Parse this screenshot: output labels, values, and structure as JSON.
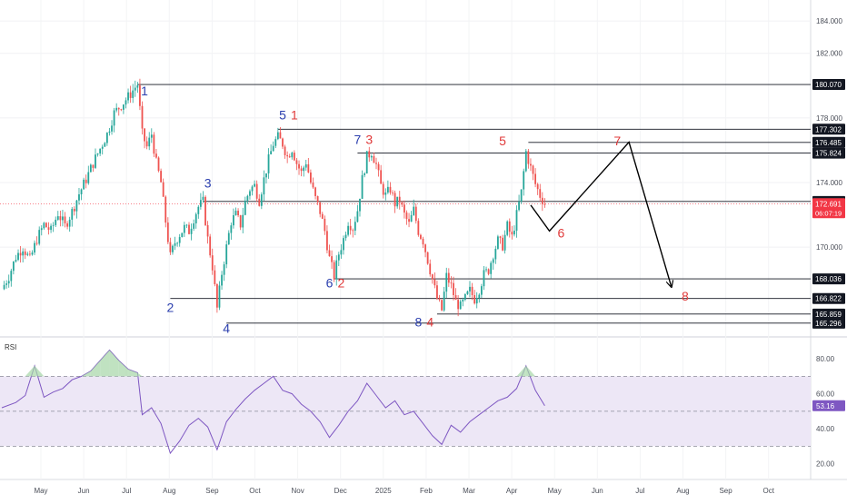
{
  "chart_data": [
    {
      "type": "candlestick",
      "title": "",
      "price_scale": {
        "ticks": [
          {
            "value": 184,
            "label": "184.000"
          },
          {
            "value": 182,
            "label": "182.000"
          },
          {
            "value": 178,
            "label": "178.000"
          },
          {
            "value": 174,
            "label": "174.000"
          },
          {
            "value": 170,
            "label": "170.000"
          }
        ],
        "ylim": [
          164.5,
          185.3
        ]
      },
      "time_axis": {
        "labels": [
          "May",
          "Jun",
          "Jul",
          "Aug",
          "Sep",
          "Oct",
          "Nov",
          "Dec",
          "2025",
          "Feb",
          "Mar",
          "Apr",
          "May",
          "Jun",
          "Jul",
          "Aug",
          "Sep",
          "Oct"
        ]
      },
      "price_series": [
        {
          "t": 0,
          "p": 167.4
        },
        {
          "t": 3,
          "p": 168.2
        },
        {
          "t": 6,
          "p": 169.4
        },
        {
          "t": 9,
          "p": 170.0
        },
        {
          "t": 12,
          "p": 169.2
        },
        {
          "t": 15,
          "p": 170.5
        },
        {
          "t": 18,
          "p": 171.4
        },
        {
          "t": 21,
          "p": 171.0
        },
        {
          "t": 24,
          "p": 172.1
        },
        {
          "t": 27,
          "p": 171.3
        },
        {
          "t": 30,
          "p": 172.2
        },
        {
          "t": 33,
          "p": 173.3
        },
        {
          "t": 36,
          "p": 174.2
        },
        {
          "t": 39,
          "p": 175.2
        },
        {
          "t": 42,
          "p": 176.1
        },
        {
          "t": 45,
          "p": 177.0
        },
        {
          "t": 48,
          "p": 178.3
        },
        {
          "t": 51,
          "p": 178.8
        },
        {
          "t": 54,
          "p": 179.3
        },
        {
          "t": 57,
          "p": 179.9
        },
        {
          "t": 58,
          "p": 180.07
        },
        {
          "t": 60,
          "p": 177.0
        },
        {
          "t": 62,
          "p": 176.2
        },
        {
          "t": 64,
          "p": 177.0
        },
        {
          "t": 66,
          "p": 175.2
        },
        {
          "t": 68,
          "p": 174.0
        },
        {
          "t": 70,
          "p": 171.6
        },
        {
          "t": 72,
          "p": 169.4
        },
        {
          "t": 74,
          "p": 170.3
        },
        {
          "t": 76,
          "p": 170.8
        },
        {
          "t": 78,
          "p": 171.2
        },
        {
          "t": 80,
          "p": 171.0
        },
        {
          "t": 82,
          "p": 171.8
        },
        {
          "t": 84,
          "p": 172.5
        },
        {
          "t": 86,
          "p": 172.8
        },
        {
          "t": 88,
          "p": 170.5
        },
        {
          "t": 90,
          "p": 168.8
        },
        {
          "t": 92,
          "p": 166.2
        },
        {
          "t": 94,
          "p": 168.4
        },
        {
          "t": 96,
          "p": 170.0
        },
        {
          "t": 98,
          "p": 171.6
        },
        {
          "t": 100,
          "p": 172.0
        },
        {
          "t": 102,
          "p": 171.4
        },
        {
          "t": 104,
          "p": 172.8
        },
        {
          "t": 106,
          "p": 173.6
        },
        {
          "t": 108,
          "p": 173.8
        },
        {
          "t": 110,
          "p": 172.9
        },
        {
          "t": 112,
          "p": 174.2
        },
        {
          "t": 114,
          "p": 175.4
        },
        {
          "t": 116,
          "p": 176.4
        },
        {
          "t": 118,
          "p": 176.8
        },
        {
          "t": 120,
          "p": 176.4
        },
        {
          "t": 122,
          "p": 175.6
        },
        {
          "t": 124,
          "p": 176.1
        },
        {
          "t": 126,
          "p": 175.2
        },
        {
          "t": 128,
          "p": 174.6
        },
        {
          "t": 130,
          "p": 175.3
        },
        {
          "t": 132,
          "p": 174.0
        },
        {
          "t": 134,
          "p": 173.0
        },
        {
          "t": 136,
          "p": 172.2
        },
        {
          "t": 138,
          "p": 171.0
        },
        {
          "t": 140,
          "p": 169.3
        },
        {
          "t": 142,
          "p": 168.2
        },
        {
          "t": 144,
          "p": 169.6
        },
        {
          "t": 146,
          "p": 170.5
        },
        {
          "t": 148,
          "p": 171.6
        },
        {
          "t": 150,
          "p": 171.2
        },
        {
          "t": 152,
          "p": 172.3
        },
        {
          "t": 154,
          "p": 174.2
        },
        {
          "t": 156,
          "p": 175.6
        },
        {
          "t": 158,
          "p": 175.9
        },
        {
          "t": 160,
          "p": 175.1
        },
        {
          "t": 162,
          "p": 173.8
        },
        {
          "t": 164,
          "p": 173.2
        },
        {
          "t": 166,
          "p": 173.6
        },
        {
          "t": 168,
          "p": 172.7
        },
        {
          "t": 170,
          "p": 172.9
        },
        {
          "t": 172,
          "p": 172.0
        },
        {
          "t": 174,
          "p": 171.4
        },
        {
          "t": 176,
          "p": 172.3
        },
        {
          "t": 178,
          "p": 171.0
        },
        {
          "t": 180,
          "p": 170.4
        },
        {
          "t": 182,
          "p": 169.2
        },
        {
          "t": 184,
          "p": 168.0
        },
        {
          "t": 186,
          "p": 166.8
        },
        {
          "t": 188,
          "p": 166.1
        },
        {
          "t": 190,
          "p": 168.2
        },
        {
          "t": 192,
          "p": 167.6
        },
        {
          "t": 194,
          "p": 166.6
        },
        {
          "t": 196,
          "p": 166.3
        },
        {
          "t": 198,
          "p": 166.8
        },
        {
          "t": 200,
          "p": 167.3
        },
        {
          "t": 202,
          "p": 166.8
        },
        {
          "t": 204,
          "p": 167.4
        },
        {
          "t": 206,
          "p": 168.3
        },
        {
          "t": 208,
          "p": 168.6
        },
        {
          "t": 210,
          "p": 169.6
        },
        {
          "t": 212,
          "p": 170.4
        },
        {
          "t": 214,
          "p": 170.1
        },
        {
          "t": 216,
          "p": 171.3
        },
        {
          "t": 218,
          "p": 170.6
        },
        {
          "t": 220,
          "p": 172.0
        },
        {
          "t": 222,
          "p": 173.4
        },
        {
          "t": 224,
          "p": 175.9
        },
        {
          "t": 226,
          "p": 174.9
        },
        {
          "t": 228,
          "p": 173.9
        },
        {
          "t": 230,
          "p": 173.2
        },
        {
          "t": 232,
          "p": 172.69
        }
      ],
      "rsi": {
        "name": "RSI",
        "current": 53.16,
        "current_label": "53.16",
        "band": [
          30,
          70
        ],
        "midline": 50,
        "ticks": [
          {
            "value": 80,
            "label": "80.00"
          },
          {
            "value": 60,
            "label": "60.00"
          },
          {
            "value": 40,
            "label": "40.00"
          },
          {
            "value": 20,
            "label": "20.00"
          }
        ],
        "values": [
          {
            "t": 0,
            "v": 52
          },
          {
            "t": 6,
            "v": 55
          },
          {
            "t": 10,
            "v": 59
          },
          {
            "t": 14,
            "v": 76
          },
          {
            "t": 18,
            "v": 58
          },
          {
            "t": 22,
            "v": 61
          },
          {
            "t": 26,
            "v": 63
          },
          {
            "t": 30,
            "v": 68
          },
          {
            "t": 34,
            "v": 70
          },
          {
            "t": 38,
            "v": 73
          },
          {
            "t": 42,
            "v": 79
          },
          {
            "t": 46,
            "v": 85
          },
          {
            "t": 50,
            "v": 79
          },
          {
            "t": 54,
            "v": 74
          },
          {
            "t": 58,
            "v": 72
          },
          {
            "t": 60,
            "v": 48
          },
          {
            "t": 64,
            "v": 52
          },
          {
            "t": 68,
            "v": 43
          },
          {
            "t": 72,
            "v": 26
          },
          {
            "t": 76,
            "v": 33
          },
          {
            "t": 80,
            "v": 42
          },
          {
            "t": 84,
            "v": 46
          },
          {
            "t": 88,
            "v": 41
          },
          {
            "t": 92,
            "v": 28
          },
          {
            "t": 96,
            "v": 44
          },
          {
            "t": 100,
            "v": 51
          },
          {
            "t": 104,
            "v": 57
          },
          {
            "t": 108,
            "v": 62
          },
          {
            "t": 112,
            "v": 66
          },
          {
            "t": 116,
            "v": 70
          },
          {
            "t": 120,
            "v": 62
          },
          {
            "t": 124,
            "v": 60
          },
          {
            "t": 128,
            "v": 54
          },
          {
            "t": 132,
            "v": 50
          },
          {
            "t": 136,
            "v": 44
          },
          {
            "t": 140,
            "v": 35
          },
          {
            "t": 144,
            "v": 42
          },
          {
            "t": 148,
            "v": 50
          },
          {
            "t": 152,
            "v": 56
          },
          {
            "t": 156,
            "v": 66
          },
          {
            "t": 160,
            "v": 59
          },
          {
            "t": 164,
            "v": 52
          },
          {
            "t": 168,
            "v": 56
          },
          {
            "t": 172,
            "v": 48
          },
          {
            "t": 176,
            "v": 50
          },
          {
            "t": 180,
            "v": 43
          },
          {
            "t": 184,
            "v": 36
          },
          {
            "t": 188,
            "v": 31
          },
          {
            "t": 192,
            "v": 42
          },
          {
            "t": 196,
            "v": 38
          },
          {
            "t": 200,
            "v": 44
          },
          {
            "t": 204,
            "v": 48
          },
          {
            "t": 208,
            "v": 52
          },
          {
            "t": 212,
            "v": 56
          },
          {
            "t": 216,
            "v": 58
          },
          {
            "t": 220,
            "v": 63
          },
          {
            "t": 224,
            "v": 76
          },
          {
            "t": 228,
            "v": 62
          },
          {
            "t": 232,
            "v": 53.16
          }
        ]
      },
      "horizontal_levels": [
        {
          "value": 180.07,
          "label": "180.070",
          "from_t": 58
        },
        {
          "value": 177.302,
          "label": "177.302",
          "from_t": 118
        },
        {
          "value": 176.485,
          "label": "176.485",
          "from_t": 225
        },
        {
          "value": 175.824,
          "label": "175.824",
          "from_t": 152
        },
        {
          "value": 172.828,
          "label": "172.828",
          "from_t": 86
        },
        {
          "value": 168.036,
          "label": "168.036",
          "from_t": 142
        },
        {
          "value": 166.822,
          "label": "166.822",
          "from_t": 72
        },
        {
          "value": 165.859,
          "label": "165.859",
          "from_t": 186
        },
        {
          "value": 165.296,
          "label": "165.296",
          "from_t": 96
        }
      ],
      "current_price": {
        "value": 172.691,
        "label": "172.691",
        "countdown": "06:07:19"
      },
      "wave_labels": [
        {
          "text": "1",
          "t": 61,
          "p": 179.4,
          "color": "#2b3fae"
        },
        {
          "text": "2",
          "t": 72,
          "p": 166.0,
          "color": "#2b3fae"
        },
        {
          "text": "3",
          "t": 88,
          "p": 173.7,
          "color": "#2b3fae"
        },
        {
          "text": "4",
          "t": 96,
          "p": 164.7,
          "color": "#2b3fae"
        },
        {
          "text": "5",
          "t": 120,
          "p": 177.9,
          "color": "#2b3fae"
        },
        {
          "text": "1",
          "t": 125,
          "p": 177.9,
          "color": "#e03a3a"
        },
        {
          "text": "6",
          "t": 140,
          "p": 167.5,
          "color": "#2b3fae"
        },
        {
          "text": "2",
          "t": 145,
          "p": 167.5,
          "color": "#e03a3a"
        },
        {
          "text": "7",
          "t": 152,
          "p": 176.4,
          "color": "#2b3fae"
        },
        {
          "text": "3",
          "t": 157,
          "p": 176.4,
          "color": "#e03a3a"
        },
        {
          "text": "8",
          "t": 178,
          "p": 165.1,
          "color": "#2b3fae"
        },
        {
          "text": "4",
          "t": 183,
          "p": 165.1,
          "color": "#e03a3a"
        },
        {
          "text": "5",
          "t": 214,
          "p": 176.3,
          "color": "#e03a3a"
        },
        {
          "text": "6",
          "t": 239,
          "p": 170.6,
          "color": "#e03a3a"
        },
        {
          "text": "7",
          "t": 263,
          "p": 176.3,
          "color": "#e03a3a"
        },
        {
          "text": "8",
          "t": 292,
          "p": 166.7,
          "color": "#e03a3a"
        }
      ],
      "projection_path": [
        {
          "t": 226,
          "p": 172.6
        },
        {
          "t": 234,
          "p": 171.0
        },
        {
          "t": 268,
          "p": 176.5
        },
        {
          "t": 286,
          "p": 167.6
        }
      ],
      "colors": {
        "up": "#26a69a",
        "down": "#ef5350",
        "rsi_line": "#7e57c2",
        "rsi_band": "#ede7f6",
        "label_blue": "#2b3fae",
        "label_red": "#e03a3a",
        "price_tag": "#f23645"
      }
    }
  ]
}
